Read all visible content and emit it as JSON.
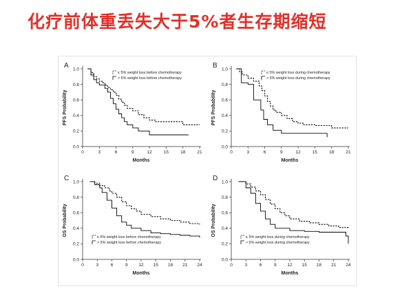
{
  "title": "化疗前体重丢失大于5%者生存期缩短",
  "colors": {
    "title": "#e0312a",
    "line": "#000000"
  },
  "chart_data": [
    {
      "panel": "A",
      "type": "line",
      "xlabel": "Months",
      "ylabel": "PFS Probability",
      "xlim": [
        0,
        21
      ],
      "ylim": [
        0,
        1.0
      ],
      "xticks": [
        0,
        3,
        6,
        9,
        12,
        15,
        18,
        21
      ],
      "yticks": [
        0.0,
        0.2,
        0.4,
        0.6,
        0.8,
        1.0
      ],
      "legend_position": "top-right",
      "series": [
        {
          "name": "≤ 5% weight loss before chemotherapy",
          "style": "dashed",
          "x": [
            0.9,
            1.5,
            2,
            2.5,
            3,
            3.5,
            4,
            4.5,
            5,
            5.5,
            6,
            6.5,
            7,
            7.5,
            8,
            9,
            10,
            11,
            12,
            13,
            15,
            18,
            21
          ],
          "y": [
            1.0,
            0.95,
            0.9,
            0.87,
            0.84,
            0.82,
            0.79,
            0.76,
            0.73,
            0.7,
            0.66,
            0.61,
            0.57,
            0.53,
            0.49,
            0.46,
            0.41,
            0.37,
            0.34,
            0.32,
            0.32,
            0.28,
            0.28
          ]
        },
        {
          "name": "> 5% weight loss before chemotherapy",
          "style": "solid",
          "x": [
            0.9,
            1.5,
            2,
            2.5,
            3,
            4,
            4.5,
            5,
            5.5,
            6,
            6.5,
            7,
            7.5,
            8,
            9,
            10,
            12,
            14,
            16,
            19
          ],
          "y": [
            1.0,
            0.92,
            0.86,
            0.82,
            0.79,
            0.75,
            0.7,
            0.62,
            0.55,
            0.48,
            0.42,
            0.37,
            0.32,
            0.28,
            0.24,
            0.2,
            0.15,
            0.15,
            0.15,
            0.15
          ]
        }
      ]
    },
    {
      "panel": "B",
      "type": "line",
      "xlabel": "Months",
      "ylabel": "PFS Probability",
      "xlim": [
        0,
        21
      ],
      "ylim": [
        0,
        1.0
      ],
      "xticks": [
        0,
        3,
        6,
        9,
        12,
        15,
        18,
        21
      ],
      "yticks": [
        0.0,
        0.2,
        0.4,
        0.6,
        0.8,
        1.0
      ],
      "legend_position": "top-right",
      "series": [
        {
          "name": "≤ 5% weight loss during chemotherapy",
          "style": "dashed",
          "x": [
            0.9,
            1.5,
            2,
            3,
            4,
            5,
            5.5,
            6,
            6.5,
            7,
            7.5,
            8,
            9,
            10,
            11,
            12,
            13,
            15,
            18,
            21
          ],
          "y": [
            1.0,
            0.96,
            0.92,
            0.88,
            0.84,
            0.78,
            0.72,
            0.65,
            0.58,
            0.52,
            0.47,
            0.44,
            0.4,
            0.36,
            0.32,
            0.3,
            0.28,
            0.27,
            0.24,
            0.24
          ]
        },
        {
          "name": "> 5% weight loss during chemotherapy",
          "style": "solid",
          "x": [
            0.9,
            1.8,
            3,
            4,
            4.7,
            5.3,
            5.8,
            6.5,
            7.5,
            9,
            12,
            15,
            17.2
          ],
          "y": [
            1.0,
            0.82,
            0.8,
            0.6,
            0.6,
            0.47,
            0.35,
            0.28,
            0.21,
            0.17,
            0.17,
            0.17,
            0.12
          ]
        }
      ]
    },
    {
      "panel": "C",
      "type": "line",
      "xlabel": "Months",
      "ylabel": "OS Probability",
      "xlim": [
        0,
        24
      ],
      "ylim": [
        0,
        1.0
      ],
      "xticks": [
        0,
        3,
        6,
        9,
        12,
        15,
        18,
        21,
        24
      ],
      "yticks": [
        0.0,
        0.2,
        0.4,
        0.6,
        0.8,
        1.0
      ],
      "legend_position": "bottom-left",
      "series": [
        {
          "name": "≤ 5% weight loss before chemotherapy",
          "style": "dashed",
          "x": [
            1.5,
            2.5,
            3.5,
            4.5,
            5.5,
            6,
            7,
            8,
            9,
            10,
            11,
            12,
            14,
            16,
            18,
            20,
            22,
            24
          ],
          "y": [
            1.0,
            0.98,
            0.95,
            0.92,
            0.88,
            0.85,
            0.8,
            0.74,
            0.69,
            0.65,
            0.62,
            0.58,
            0.55,
            0.52,
            0.5,
            0.48,
            0.46,
            0.45
          ]
        },
        {
          "name": "> 5% weight loss before chemotherapy",
          "style": "solid",
          "x": [
            1.5,
            2.5,
            3.5,
            4,
            5,
            6,
            7,
            8,
            9,
            10,
            12,
            14,
            16,
            18,
            20,
            22,
            24
          ],
          "y": [
            1.0,
            0.96,
            0.92,
            0.86,
            0.76,
            0.66,
            0.56,
            0.48,
            0.44,
            0.4,
            0.37,
            0.34,
            0.33,
            0.32,
            0.31,
            0.3,
            0.28
          ]
        }
      ]
    },
    {
      "panel": "D",
      "type": "line",
      "xlabel": "Months",
      "ylabel": "OS Probability",
      "xlim": [
        0,
        24
      ],
      "ylim": [
        0,
        1.0
      ],
      "xticks": [
        0,
        3,
        6,
        9,
        12,
        15,
        18,
        21,
        24
      ],
      "yticks": [
        0.0,
        0.2,
        0.4,
        0.6,
        0.8,
        1.0
      ],
      "legend_position": "bottom-left",
      "series": [
        {
          "name": "≤ 5% weight loss during chemotherapy",
          "style": "dashed",
          "x": [
            1.5,
            3,
            4,
            5,
            6,
            7,
            8,
            9,
            10,
            11,
            12,
            14,
            16,
            18,
            20,
            22,
            24
          ],
          "y": [
            1.0,
            0.97,
            0.93,
            0.88,
            0.83,
            0.77,
            0.71,
            0.65,
            0.6,
            0.56,
            0.52,
            0.49,
            0.47,
            0.45,
            0.43,
            0.41,
            0.4
          ]
        },
        {
          "name": "> 5% weight loss during chemotherapy",
          "style": "solid",
          "x": [
            1.5,
            3,
            4,
            5,
            6,
            7,
            8,
            9,
            12,
            15,
            18,
            21,
            23.5,
            24
          ],
          "y": [
            1.0,
            0.92,
            0.85,
            0.72,
            0.62,
            0.52,
            0.45,
            0.4,
            0.37,
            0.36,
            0.35,
            0.35,
            0.3,
            0.2
          ]
        }
      ]
    }
  ]
}
